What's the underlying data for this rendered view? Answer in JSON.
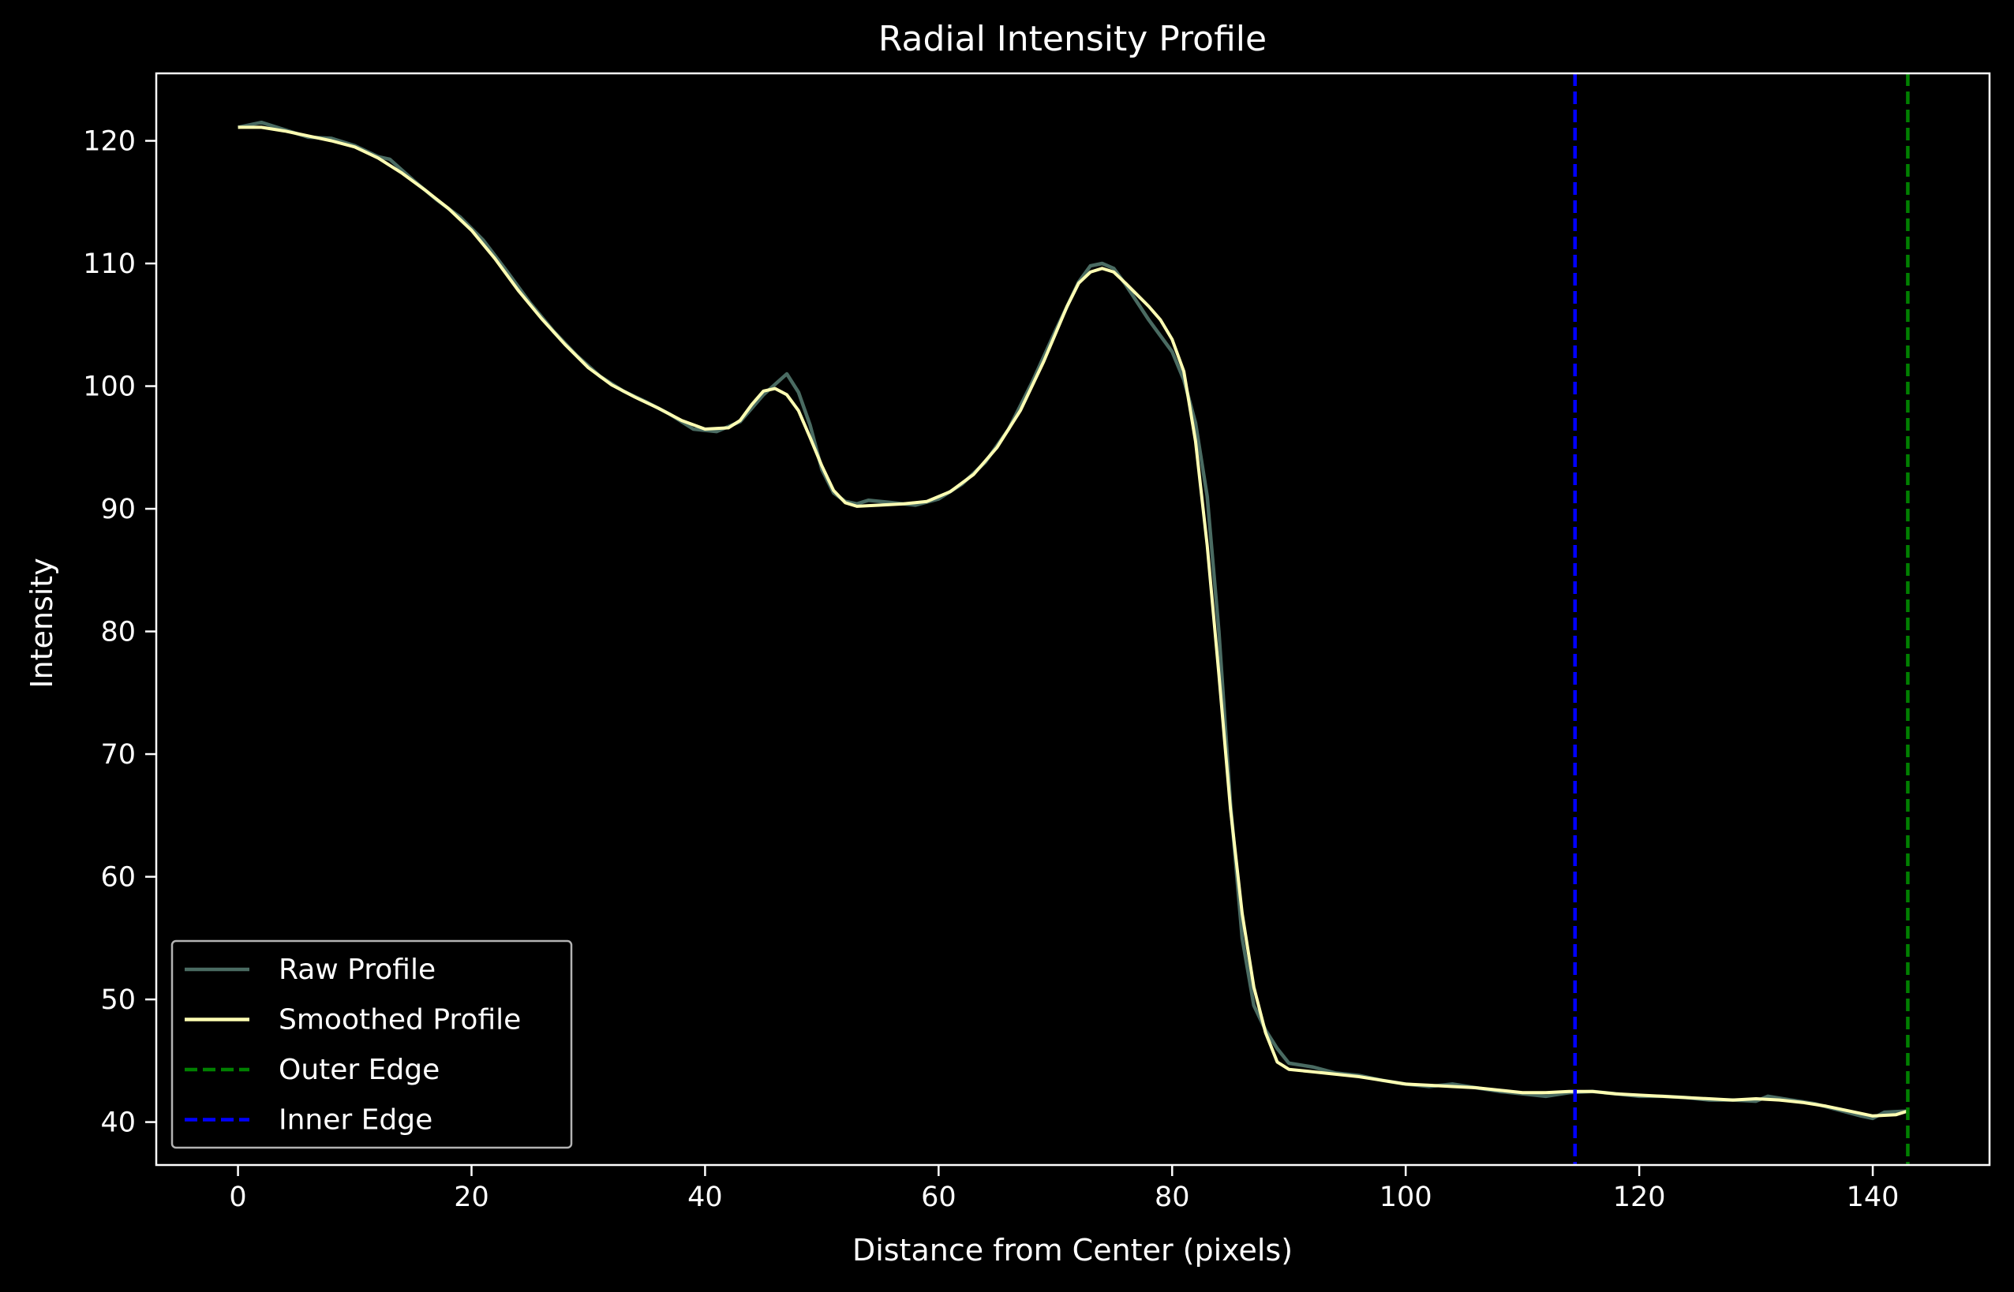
{
  "chart_data": {
    "type": "line",
    "title": "Radial Intensity Profile",
    "xlabel": "Distance from Center (pixels)",
    "ylabel": "Intensity",
    "xlim": [
      -7,
      150
    ],
    "ylim": [
      36.5,
      125.5
    ],
    "xticks": [
      0,
      20,
      40,
      60,
      80,
      100,
      120,
      140
    ],
    "yticks": [
      40,
      50,
      60,
      70,
      80,
      90,
      100,
      110,
      120
    ],
    "grid": false,
    "legend_position": "lower-left",
    "series": [
      {
        "name": "Raw Profile",
        "color": "#4a6b62",
        "style": "solid",
        "points": [
          [
            0,
            121.1
          ],
          [
            2,
            121.5
          ],
          [
            4,
            120.9
          ],
          [
            6,
            120.3
          ],
          [
            8,
            120.2
          ],
          [
            10,
            119.6
          ],
          [
            12,
            118.7
          ],
          [
            13,
            118.5
          ],
          [
            15,
            116.8
          ],
          [
            17,
            115.2
          ],
          [
            19,
            113.8
          ],
          [
            21,
            111.9
          ],
          [
            23,
            109.4
          ],
          [
            25,
            106.8
          ],
          [
            27,
            104.5
          ],
          [
            29,
            102.5
          ],
          [
            31,
            100.8
          ],
          [
            33,
            99.6
          ],
          [
            35,
            98.7
          ],
          [
            37,
            97.7
          ],
          [
            39,
            96.5
          ],
          [
            41,
            96.3
          ],
          [
            43,
            97.1
          ],
          [
            45,
            99.3
          ],
          [
            47,
            101.0
          ],
          [
            48,
            99.5
          ],
          [
            49,
            96.8
          ],
          [
            50,
            93.2
          ],
          [
            51,
            91.3
          ],
          [
            52,
            90.6
          ],
          [
            53,
            90.4
          ],
          [
            54,
            90.7
          ],
          [
            56,
            90.5
          ],
          [
            58,
            90.3
          ],
          [
            60,
            90.8
          ],
          [
            62,
            92.0
          ],
          [
            64,
            93.8
          ],
          [
            66,
            96.5
          ],
          [
            68,
            100.3
          ],
          [
            70,
            104.5
          ],
          [
            72,
            108.5
          ],
          [
            73,
            109.8
          ],
          [
            74,
            110.0
          ],
          [
            75,
            109.6
          ],
          [
            76,
            108.3
          ],
          [
            78,
            105.4
          ],
          [
            80,
            102.8
          ],
          [
            81,
            100.5
          ],
          [
            82,
            97.0
          ],
          [
            83,
            91.0
          ],
          [
            84,
            80.0
          ],
          [
            85,
            66.0
          ],
          [
            86,
            55.0
          ],
          [
            87,
            49.5
          ],
          [
            88,
            47.5
          ],
          [
            89,
            46.0
          ],
          [
            90,
            44.8
          ],
          [
            92,
            44.5
          ],
          [
            94,
            44.0
          ],
          [
            96,
            43.8
          ],
          [
            98,
            43.4
          ],
          [
            100,
            43.1
          ],
          [
            102,
            42.9
          ],
          [
            104,
            43.1
          ],
          [
            106,
            42.8
          ],
          [
            108,
            42.5
          ],
          [
            110,
            42.3
          ],
          [
            112,
            42.1
          ],
          [
            114,
            42.4
          ],
          [
            116,
            42.5
          ],
          [
            118,
            42.3
          ],
          [
            120,
            42.1
          ],
          [
            122,
            42.1
          ],
          [
            124,
            42.0
          ],
          [
            126,
            41.8
          ],
          [
            128,
            41.8
          ],
          [
            130,
            41.7
          ],
          [
            131,
            42.1
          ],
          [
            133,
            41.8
          ],
          [
            135,
            41.5
          ],
          [
            137,
            41.0
          ],
          [
            139,
            40.5
          ],
          [
            140,
            40.3
          ],
          [
            141,
            40.8
          ],
          [
            143,
            40.9
          ]
        ]
      },
      {
        "name": "Smoothed Profile",
        "color": "#ffffb3",
        "style": "solid",
        "points": [
          [
            0,
            121.1
          ],
          [
            2,
            121.1
          ],
          [
            4,
            120.8
          ],
          [
            6,
            120.4
          ],
          [
            8,
            120.0
          ],
          [
            10,
            119.5
          ],
          [
            12,
            118.6
          ],
          [
            14,
            117.4
          ],
          [
            16,
            116.0
          ],
          [
            18,
            114.5
          ],
          [
            20,
            112.7
          ],
          [
            22,
            110.4
          ],
          [
            24,
            107.8
          ],
          [
            26,
            105.5
          ],
          [
            28,
            103.4
          ],
          [
            30,
            101.5
          ],
          [
            32,
            100.1
          ],
          [
            34,
            99.1
          ],
          [
            36,
            98.2
          ],
          [
            38,
            97.2
          ],
          [
            40,
            96.5
          ],
          [
            42,
            96.6
          ],
          [
            43,
            97.2
          ],
          [
            44,
            98.5
          ],
          [
            45,
            99.6
          ],
          [
            46,
            99.8
          ],
          [
            47,
            99.3
          ],
          [
            48,
            98.0
          ],
          [
            49,
            95.8
          ],
          [
            50,
            93.5
          ],
          [
            51,
            91.5
          ],
          [
            52,
            90.5
          ],
          [
            53,
            90.2
          ],
          [
            55,
            90.3
          ],
          [
            57,
            90.4
          ],
          [
            59,
            90.6
          ],
          [
            61,
            91.4
          ],
          [
            63,
            92.8
          ],
          [
            65,
            95.0
          ],
          [
            67,
            98.0
          ],
          [
            69,
            102.0
          ],
          [
            71,
            106.5
          ],
          [
            72,
            108.4
          ],
          [
            73,
            109.3
          ],
          [
            74,
            109.6
          ],
          [
            75,
            109.3
          ],
          [
            76,
            108.4
          ],
          [
            78,
            106.5
          ],
          [
            79,
            105.4
          ],
          [
            80,
            103.8
          ],
          [
            81,
            101.2
          ],
          [
            82,
            95.5
          ],
          [
            83,
            87.0
          ],
          [
            84,
            76.5
          ],
          [
            85,
            65.5
          ],
          [
            86,
            57.0
          ],
          [
            87,
            51.0
          ],
          [
            88,
            47.3
          ],
          [
            89,
            44.9
          ],
          [
            90,
            44.3
          ],
          [
            92,
            44.1
          ],
          [
            94,
            43.9
          ],
          [
            96,
            43.7
          ],
          [
            98,
            43.4
          ],
          [
            100,
            43.1
          ],
          [
            102,
            43.0
          ],
          [
            104,
            42.9
          ],
          [
            106,
            42.8
          ],
          [
            108,
            42.6
          ],
          [
            110,
            42.4
          ],
          [
            112,
            42.4
          ],
          [
            114,
            42.5
          ],
          [
            116,
            42.5
          ],
          [
            118,
            42.3
          ],
          [
            120,
            42.2
          ],
          [
            122,
            42.1
          ],
          [
            124,
            42.0
          ],
          [
            126,
            41.9
          ],
          [
            128,
            41.8
          ],
          [
            130,
            41.9
          ],
          [
            132,
            41.8
          ],
          [
            134,
            41.6
          ],
          [
            136,
            41.3
          ],
          [
            138,
            40.9
          ],
          [
            140,
            40.5
          ],
          [
            142,
            40.6
          ],
          [
            143,
            40.9
          ]
        ]
      },
      {
        "name": "Outer Edge",
        "color": "#008000",
        "style": "dashed",
        "x": 143
      },
      {
        "name": "Inner Edge",
        "color": "#0000ff",
        "style": "dashed",
        "x": 114.5
      }
    ]
  }
}
